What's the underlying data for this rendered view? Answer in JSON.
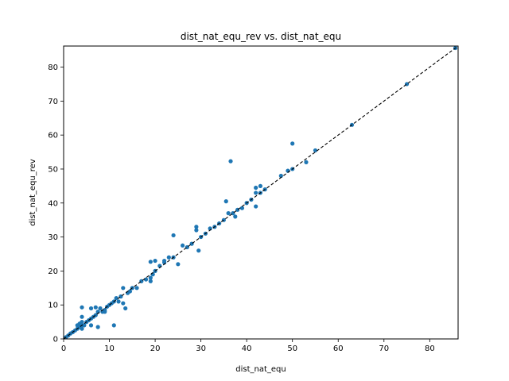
{
  "chart_data": {
    "type": "scatter",
    "title": "dist_nat_equ_rev vs. dist_nat_equ",
    "xlabel": "dist_nat_equ",
    "ylabel": "dist_nat_equ_rev",
    "xlim": [
      0,
      86.2
    ],
    "ylim": [
      0,
      86.2
    ],
    "xticks": [
      0,
      10,
      20,
      30,
      40,
      50,
      60,
      70,
      80
    ],
    "yticks": [
      0,
      10,
      20,
      30,
      40,
      50,
      60,
      70,
      80
    ],
    "grid": false,
    "point_color": "#1f77b4",
    "reference_line": {
      "from": [
        0,
        0
      ],
      "to": [
        86.2,
        86.2
      ],
      "style": "dashed",
      "color": "#000000"
    },
    "series": [
      {
        "points": [
          [
            0.5,
            0.5
          ],
          [
            1,
            1
          ],
          [
            1.5,
            1.6
          ],
          [
            2,
            2
          ],
          [
            2.5,
            2.5
          ],
          [
            3,
            3
          ],
          [
            3,
            4
          ],
          [
            3.5,
            3.5
          ],
          [
            3.5,
            4.5
          ],
          [
            4,
            3
          ],
          [
            4,
            4
          ],
          [
            4,
            5
          ],
          [
            4,
            6.5
          ],
          [
            4,
            9.3
          ],
          [
            4.5,
            4
          ],
          [
            5,
            5
          ],
          [
            5.5,
            5.5
          ],
          [
            6,
            6
          ],
          [
            6,
            4
          ],
          [
            6,
            9
          ],
          [
            6.5,
            6.5
          ],
          [
            7,
            7
          ],
          [
            7,
            9.3
          ],
          [
            7.5,
            3.5
          ],
          [
            7.5,
            8
          ],
          [
            8,
            9
          ],
          [
            8.5,
            8
          ],
          [
            9,
            8.5
          ],
          [
            9,
            8
          ],
          [
            9.5,
            9.5
          ],
          [
            10,
            10
          ],
          [
            10.5,
            10.5
          ],
          [
            11,
            4
          ],
          [
            11,
            11
          ],
          [
            11.5,
            12
          ],
          [
            12,
            11
          ],
          [
            12.5,
            12.5
          ],
          [
            13,
            10.5
          ],
          [
            13,
            15
          ],
          [
            13.5,
            9
          ],
          [
            14,
            13.5
          ],
          [
            14.5,
            14
          ],
          [
            15,
            15
          ],
          [
            16,
            15
          ],
          [
            17,
            17
          ],
          [
            18,
            17.5
          ],
          [
            19,
            18
          ],
          [
            19,
            17
          ],
          [
            19,
            22.7
          ],
          [
            19.5,
            19
          ],
          [
            20,
            23
          ],
          [
            20,
            20
          ],
          [
            21,
            21.5
          ],
          [
            22,
            22.5
          ],
          [
            22,
            23
          ],
          [
            23,
            24
          ],
          [
            24,
            24
          ],
          [
            24,
            30.5
          ],
          [
            25,
            22
          ],
          [
            26,
            27.5
          ],
          [
            27,
            27
          ],
          [
            28,
            28
          ],
          [
            29,
            32
          ],
          [
            29,
            33
          ],
          [
            29.5,
            26
          ],
          [
            30,
            30
          ],
          [
            31,
            31
          ],
          [
            32,
            32.5
          ],
          [
            33,
            33
          ],
          [
            34,
            34
          ],
          [
            35,
            35
          ],
          [
            35.5,
            40.5
          ],
          [
            36,
            37
          ],
          [
            36.5,
            52.3
          ],
          [
            37,
            37
          ],
          [
            37.5,
            36
          ],
          [
            38,
            38
          ],
          [
            39,
            38.5
          ],
          [
            40,
            40
          ],
          [
            41,
            41
          ],
          [
            42,
            43
          ],
          [
            42,
            44.5
          ],
          [
            42,
            39
          ],
          [
            43,
            45
          ],
          [
            43,
            43
          ],
          [
            44,
            44
          ],
          [
            47.5,
            48
          ],
          [
            49,
            49.5
          ],
          [
            50,
            50
          ],
          [
            50,
            57.5
          ],
          [
            53,
            52
          ],
          [
            55,
            55.5
          ],
          [
            63,
            63
          ],
          [
            75,
            75
          ],
          [
            85.6,
            85.6
          ]
        ]
      }
    ]
  }
}
